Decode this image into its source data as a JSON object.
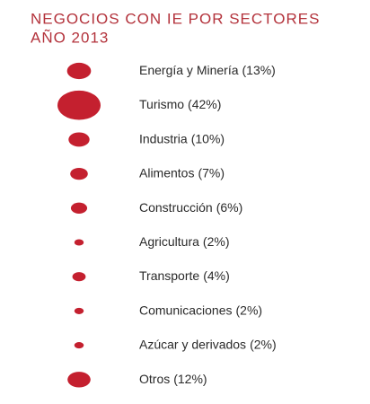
{
  "chart_data": {
    "type": "bubble",
    "title": "NEGOCIOS CON IE POR SECTORES",
    "subtitle": "AÑO 2013",
    "categories": [
      "Energía y Minería",
      "Turismo",
      "Industria",
      "Alimentos",
      "Construcción",
      "Agricultura",
      "Transporte",
      "Comunicaciones",
      "Azúcar y derivados",
      "Otros"
    ],
    "values": [
      13,
      42,
      10,
      7,
      6,
      2,
      4,
      2,
      2,
      12
    ],
    "value_labels": [
      "(13%)",
      "(42%)",
      "(10%)",
      "(7%)",
      "(6%)",
      "(2%)",
      "(4%)",
      "(2%)",
      "(2%)",
      "(12%)"
    ],
    "color": "#c4202f"
  }
}
